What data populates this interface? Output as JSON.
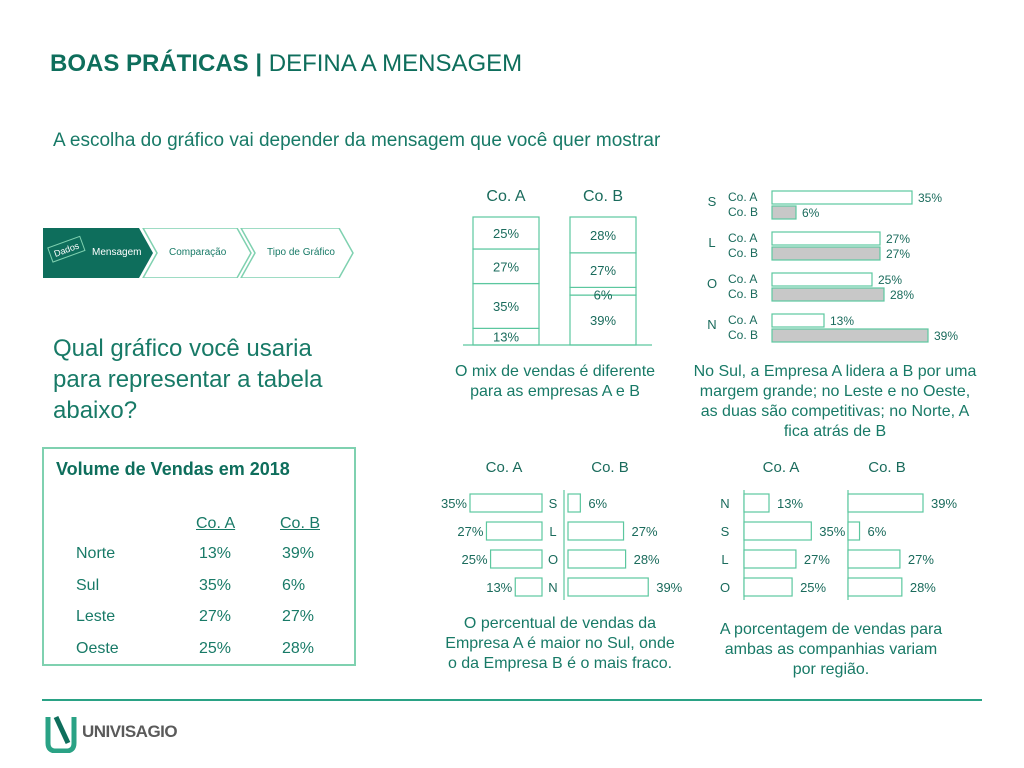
{
  "page": {
    "title_bold": "BOAS PRÁTICAS |",
    "title_rest": "DEFINA A MENSAGEM",
    "subtitle": "A escolha do gráfico vai depender da mensagem que você quer mostrar",
    "question": "Qual gráfico você usaria para representar a tabela abaixo?",
    "logo_text": "UNIVISAGIO"
  },
  "process": {
    "steps": [
      "Dados",
      "Mensagem",
      "Comparação",
      "Tipo de Gráfico"
    ],
    "active_color": "#0e6e5c",
    "outline_color": "#7fd1b0"
  },
  "table": {
    "title": "Volume de Vendas em 2018",
    "headers": [
      "Co. A",
      "Co. B"
    ],
    "rows": [
      {
        "region": "Norte",
        "a": "13%",
        "b": "39%"
      },
      {
        "region": "Sul",
        "a": "35%",
        "b": "6%"
      },
      {
        "region": "Leste",
        "a": "27%",
        "b": "27%"
      },
      {
        "region": "Oeste",
        "a": "25%",
        "b": "28%"
      }
    ]
  },
  "chart_data": [
    {
      "type": "bar",
      "variant": "stacked-100",
      "categories": [
        "Co. A",
        "Co. B"
      ],
      "series": [
        {
          "values": [
            13,
            39
          ]
        },
        {
          "values": [
            35,
            6
          ]
        },
        {
          "values": [
            27,
            27
          ]
        },
        {
          "values": [
            25,
            28
          ]
        }
      ],
      "caption": "O mix de vendas é diferente para as empresas A e B"
    },
    {
      "type": "bar",
      "variant": "grouped-horizontal",
      "categories": [
        "S",
        "L",
        "O",
        "N"
      ],
      "series": [
        {
          "name": "Co. A",
          "values": [
            35,
            27,
            25,
            13
          ]
        },
        {
          "name": "Co. B",
          "values": [
            6,
            27,
            28,
            39
          ]
        }
      ],
      "colors": {
        "Co. A": "#ffffff",
        "Co. B": "#c8c8c8"
      },
      "caption": "No Sul, a Empresa A lidera a B por uma margem grande; no Leste e no Oeste, as duas são competitivas; no Norte, A fica atrás de B"
    },
    {
      "type": "bar",
      "variant": "butterfly",
      "categories": [
        "S",
        "L",
        "O",
        "N"
      ],
      "headers": [
        "Co. A",
        "Co. B"
      ],
      "series": [
        {
          "name": "Co. A",
          "values": [
            35,
            27,
            25,
            13
          ]
        },
        {
          "name": "Co. B",
          "values": [
            6,
            27,
            28,
            39
          ]
        }
      ],
      "caption": "O percentual de vendas da Empresa A é maior no Sul, onde o da Empresa B é o mais fraco."
    },
    {
      "type": "bar",
      "variant": "paired-horizontal",
      "categories": [
        "N",
        "S",
        "L",
        "O"
      ],
      "headers": [
        "Co. A",
        "Co. B"
      ],
      "series": [
        {
          "name": "Co. A",
          "values": [
            13,
            35,
            27,
            25
          ]
        },
        {
          "name": "Co. B",
          "values": [
            39,
            6,
            27,
            28
          ]
        }
      ],
      "caption": "A porcentagem de vendas para ambas as companhias variam por região."
    }
  ]
}
